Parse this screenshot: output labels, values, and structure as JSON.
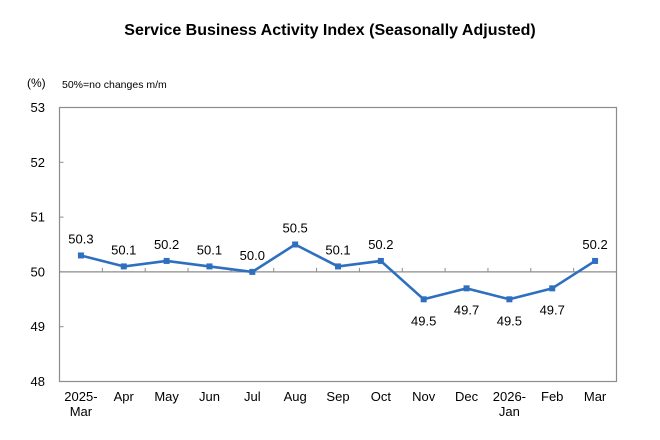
{
  "chart_data": {
    "type": "line",
    "title": "Service Business Activity Index (Seasonally Adjusted)",
    "ylabel": "(%)",
    "annotation": "50%=no changes m/m",
    "xlabel": "",
    "categories": [
      [
        "2025-",
        "Mar"
      ],
      [
        "Apr"
      ],
      [
        "May"
      ],
      [
        "Jun"
      ],
      [
        "Jul"
      ],
      [
        "Aug"
      ],
      [
        "Sep"
      ],
      [
        "Oct"
      ],
      [
        "Nov"
      ],
      [
        "Dec"
      ],
      [
        "2026-",
        "Jan"
      ],
      [
        "Feb"
      ],
      [
        "Mar"
      ]
    ],
    "series": [
      {
        "name": "Service Business Activity Index",
        "color": "#2E6FC0",
        "values": [
          50.3,
          50.1,
          50.2,
          50.1,
          50.0,
          50.5,
          50.1,
          50.2,
          49.5,
          49.7,
          49.5,
          49.7,
          50.2
        ],
        "label_positions": [
          "above",
          "above",
          "above",
          "above",
          "above",
          "above",
          "above",
          "above",
          "below",
          "below",
          "below",
          "below",
          "above"
        ]
      }
    ],
    "ylim": [
      48,
      53
    ],
    "yticks": [
      48,
      49,
      50,
      51,
      52,
      53
    ],
    "reference_line": 50,
    "grid": false,
    "legend": "none"
  }
}
